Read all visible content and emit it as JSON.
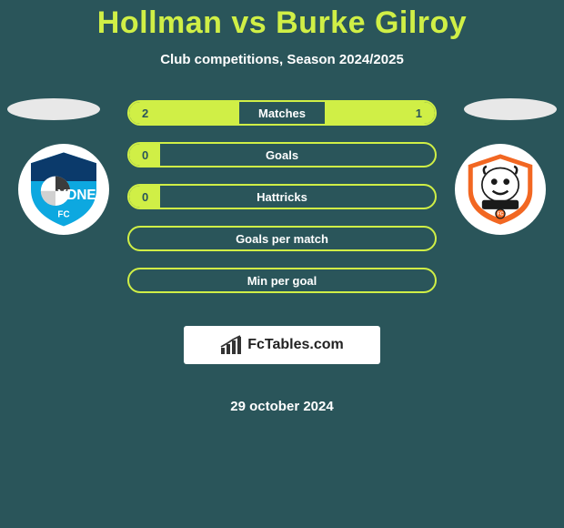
{
  "title": "Hollman vs Burke Gilroy",
  "subtitle": "Club competitions, Season 2024/2025",
  "date": "29 october 2024",
  "footer_brand": "FcTables.com",
  "colors": {
    "background": "#2a555a",
    "accent": "#d0ef46",
    "white": "#ffffff",
    "team1_primary": "#0da8e0",
    "team1_secondary": "#0b3a6b",
    "team2_primary": "#f26722",
    "team2_secondary": "#1a1a1a"
  },
  "stats": [
    {
      "label": "Matches",
      "left_val": "2",
      "right_val": "1",
      "left_pct": 36,
      "right_pct": 36,
      "show_left": true,
      "show_right": true
    },
    {
      "label": "Goals",
      "left_val": "0",
      "right_val": "",
      "left_pct": 10,
      "right_pct": 0,
      "show_left": true,
      "show_right": false
    },
    {
      "label": "Hattricks",
      "left_val": "0",
      "right_val": "",
      "left_pct": 10,
      "right_pct": 0,
      "show_left": true,
      "show_right": false
    },
    {
      "label": "Goals per match",
      "left_val": "",
      "right_val": "",
      "left_pct": 0,
      "right_pct": 0,
      "show_left": false,
      "show_right": false
    },
    {
      "label": "Min per goal",
      "left_val": "",
      "right_val": "",
      "left_pct": 0,
      "right_pct": 0,
      "show_left": false,
      "show_right": false
    }
  ]
}
